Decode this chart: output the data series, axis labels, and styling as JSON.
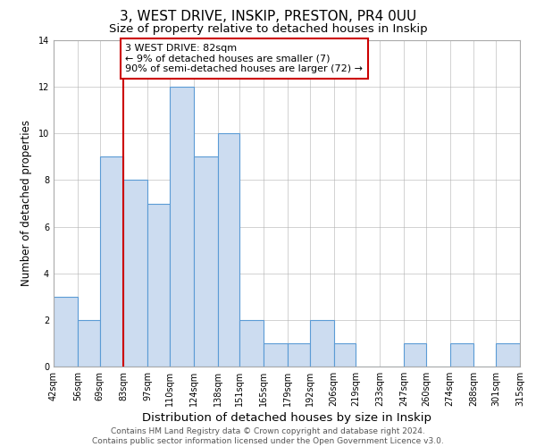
{
  "title": "3, WEST DRIVE, INSKIP, PRESTON, PR4 0UU",
  "subtitle": "Size of property relative to detached houses in Inskip",
  "xlabel": "Distribution of detached houses by size in Inskip",
  "ylabel": "Number of detached properties",
  "bin_edges": [
    42,
    56,
    69,
    83,
    97,
    110,
    124,
    138,
    151,
    165,
    179,
    192,
    206,
    219,
    233,
    247,
    260,
    274,
    288,
    301,
    315
  ],
  "bin_labels": [
    "42sqm",
    "56sqm",
    "69sqm",
    "83sqm",
    "97sqm",
    "110sqm",
    "124sqm",
    "138sqm",
    "151sqm",
    "165sqm",
    "179sqm",
    "192sqm",
    "206sqm",
    "219sqm",
    "233sqm",
    "247sqm",
    "260sqm",
    "274sqm",
    "288sqm",
    "301sqm",
    "315sqm"
  ],
  "counts": [
    3,
    2,
    9,
    8,
    7,
    12,
    9,
    10,
    2,
    1,
    1,
    2,
    1,
    0,
    0,
    1,
    0,
    1,
    0,
    1
  ],
  "bar_facecolor": "#ccdcf0",
  "bar_edgecolor": "#5b9bd5",
  "property_line_x": 83,
  "property_line_color": "#cc0000",
  "annotation_text": "3 WEST DRIVE: 82sqm\n← 9% of detached houses are smaller (7)\n90% of semi-detached houses are larger (72) →",
  "annotation_box_edgecolor": "#cc0000",
  "annotation_box_facecolor": "#ffffff",
  "ylim": [
    0,
    14
  ],
  "yticks": [
    0,
    2,
    4,
    6,
    8,
    10,
    12,
    14
  ],
  "grid_color": "#b0b0b0",
  "footer_text": "Contains HM Land Registry data © Crown copyright and database right 2024.\nContains public sector information licensed under the Open Government Licence v3.0.",
  "title_fontsize": 11,
  "subtitle_fontsize": 9.5,
  "xlabel_fontsize": 9.5,
  "ylabel_fontsize": 8.5,
  "footer_fontsize": 6.5,
  "annotation_fontsize": 8,
  "tick_fontsize": 7
}
